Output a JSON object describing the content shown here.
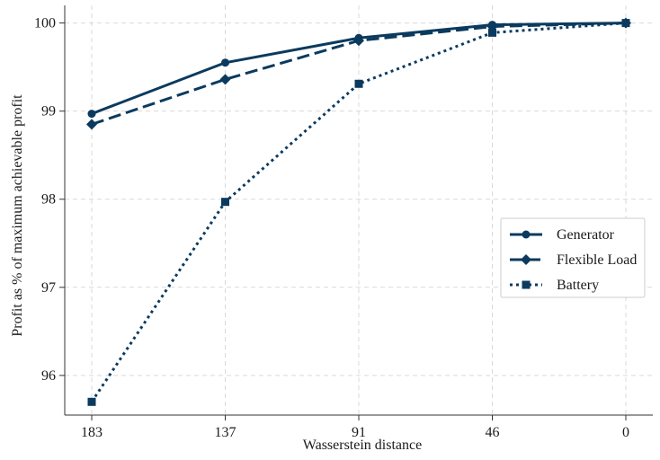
{
  "chart_data": {
    "type": "line",
    "xlabel": "Wasserstein distance",
    "ylabel": "Profit as % of maximum achievable profit",
    "x_categories": [
      "183",
      "137",
      "91",
      "46",
      "0"
    ],
    "ylim": [
      95.55,
      100.2
    ],
    "yticks": [
      "96",
      "97",
      "98",
      "99",
      "100"
    ],
    "grid": true,
    "legend_position": "center-right",
    "series": [
      {
        "name": "Generator",
        "values": [
          98.97,
          99.55,
          99.83,
          99.98,
          100.0
        ],
        "marker": "circle",
        "linestyle": "solid",
        "color": "#0b3a5e"
      },
      {
        "name": "Flexible Load",
        "values": [
          98.85,
          99.36,
          99.8,
          99.96,
          100.0
        ],
        "marker": "diamond",
        "linestyle": "dashed",
        "color": "#0b3a5e"
      },
      {
        "name": "Battery",
        "values": [
          95.7,
          97.97,
          99.31,
          99.89,
          100.0
        ],
        "marker": "square",
        "linestyle": "dotted",
        "color": "#0b3a5e"
      }
    ]
  }
}
